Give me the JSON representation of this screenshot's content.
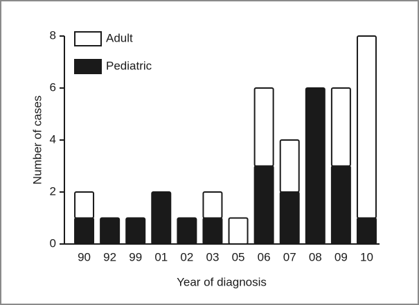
{
  "chart_data": {
    "type": "stacked-bar",
    "x_label": "Year of diagnosis",
    "y_label": "Number of cases",
    "categories": [
      "90",
      "92",
      "99",
      "01",
      "02",
      "03",
      "05",
      "06",
      "07",
      "08",
      "09",
      "10"
    ],
    "series": [
      {
        "name": "Pediatric",
        "color": "#1a1a1a",
        "values": [
          1,
          1,
          1,
          2,
          1,
          1,
          0,
          3,
          2,
          6,
          3,
          1
        ]
      },
      {
        "name": "Adult",
        "color": "#ffffff",
        "values": [
          1,
          0,
          0,
          0,
          0,
          1,
          1,
          3,
          2,
          0,
          3,
          7
        ]
      }
    ],
    "ylim": [
      0,
      8
    ],
    "yticks": [
      0,
      2,
      4,
      6,
      8
    ],
    "legend": "top-left"
  }
}
